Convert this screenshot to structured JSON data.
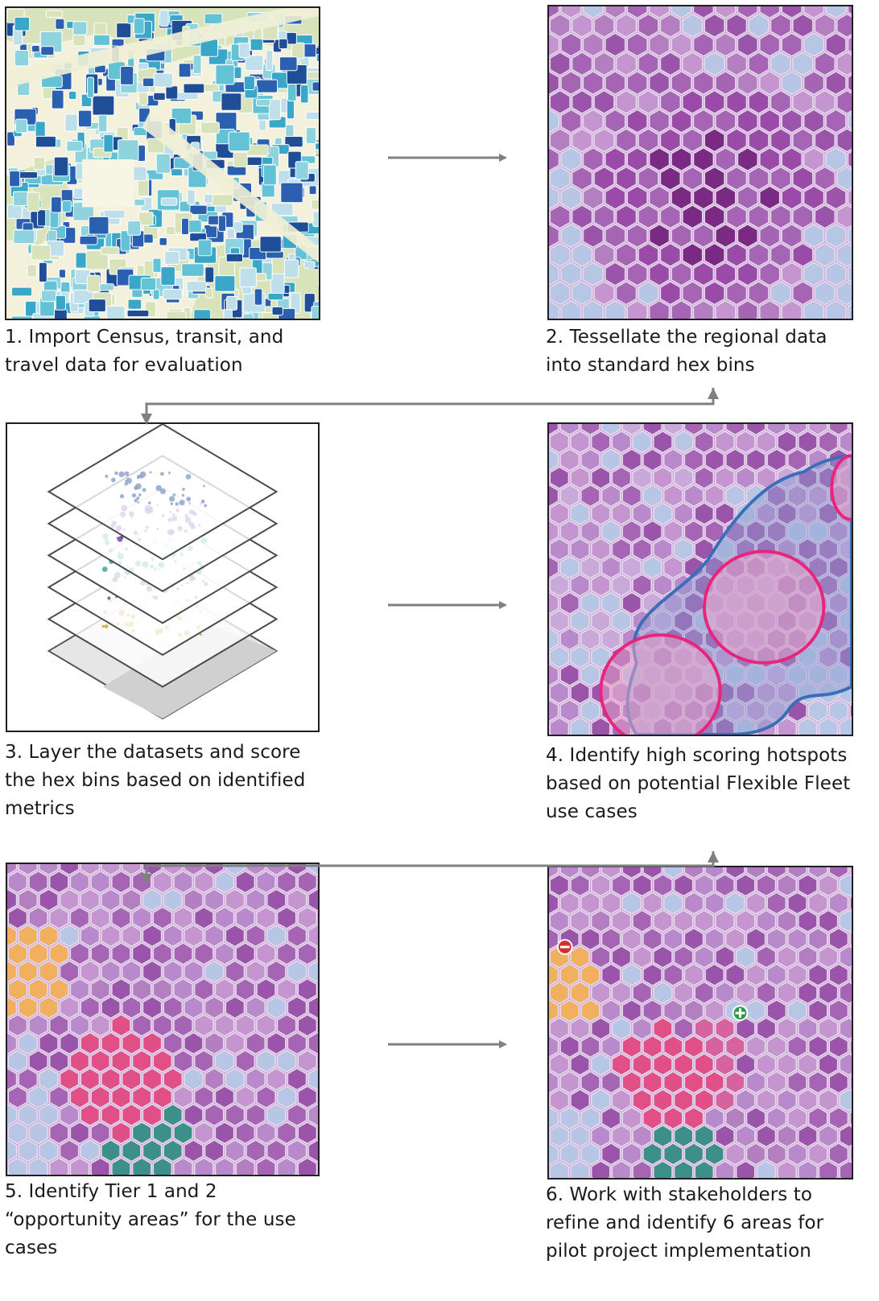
{
  "steps": [
    {
      "lines": [
        "1. Import Census, transit, and",
        "travel data for evaluation"
      ]
    },
    {
      "lines": [
        "2. Tessellate the regional data",
        "into standard hex bins"
      ]
    },
    {
      "lines": [
        "3. Layer the datasets and score",
        "the hex bins based on identified",
        "metrics"
      ]
    },
    {
      "lines": [
        "4. Identify high scoring hotspots",
        "based on potential Flexible Fleet",
        "use cases"
      ]
    },
    {
      "lines": [
        "5. Identify Tier 1 and 2",
        "“opportunity areas” for the use",
        "cases"
      ]
    },
    {
      "lines": [
        "6. Work with stakeholders to",
        "refine and identify 6 areas for",
        "pilot project implementation"
      ]
    }
  ],
  "colors": {
    "arrow": "#808080",
    "border": "#1f1f1f",
    "hex_purple": "#b47fc0",
    "hex_dark": "#7a2a82",
    "hex_light": "#b6c6e4",
    "hotspot_outline": "#e8257c",
    "cluster_outline": "#3a6fb8",
    "tier1": "#e04f86",
    "tier2": "#f0b060",
    "tier_teal": "#3d8f8a",
    "remove_badge": "#d32f2f",
    "add_badge": "#2e9b4a"
  },
  "icons": [
    "remove-badge-icon",
    "add-badge-icon"
  ]
}
